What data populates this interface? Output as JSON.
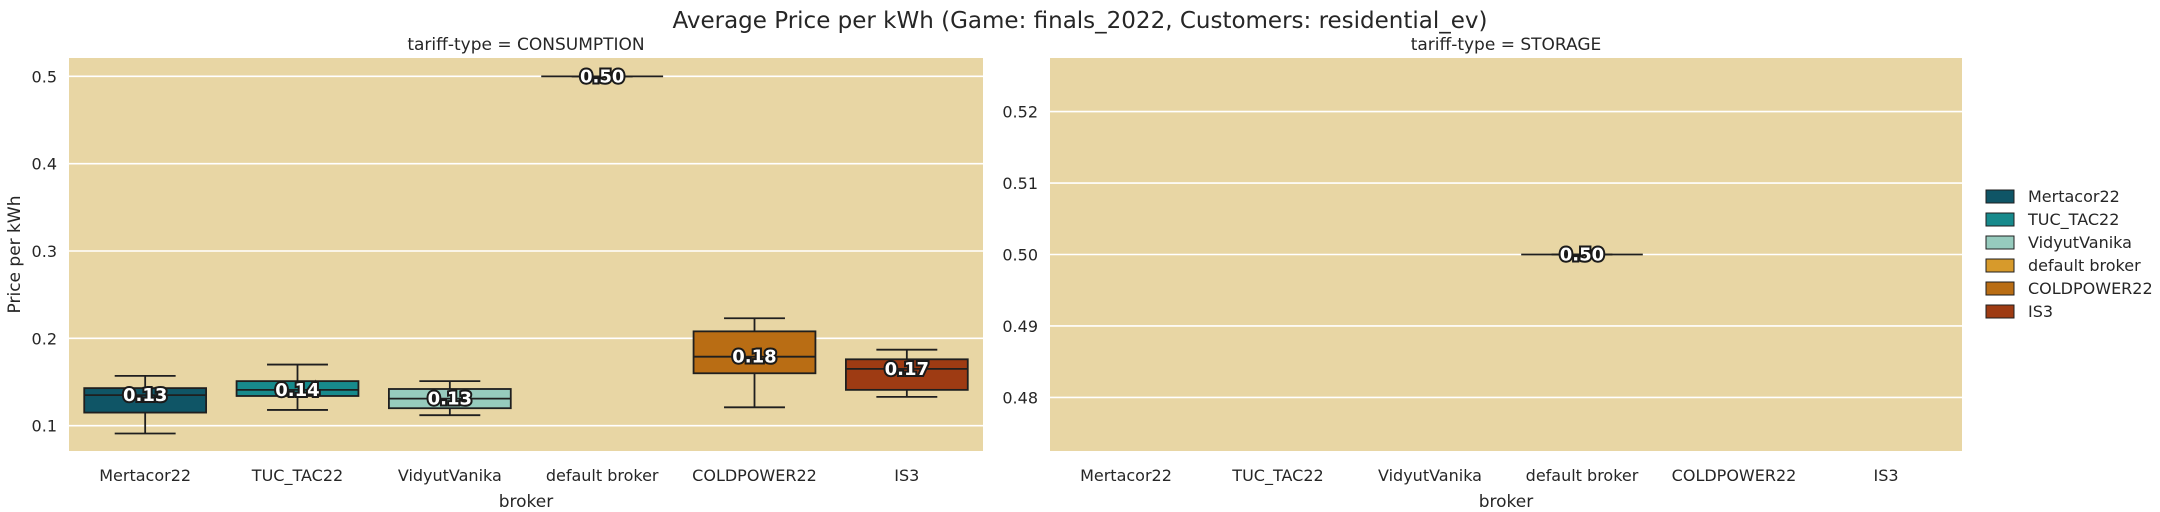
{
  "chart_data": {
    "type": "box",
    "title": "Average Price per kWh (Game: finals_2022, Customers: residential_ev)",
    "panel_background": "#e8d6a4",
    "legend": {
      "placement": "right",
      "entries": [
        {
          "name": "Mertacor22",
          "color": "#0f5566"
        },
        {
          "name": "TUC_TAC22",
          "color": "#178a8c"
        },
        {
          "name": "VidyutVanika",
          "color": "#96cbbd"
        },
        {
          "name": "default broker",
          "color": "#d79a2b"
        },
        {
          "name": "COLDPOWER22",
          "color": "#b96d14"
        },
        {
          "name": "IS3",
          "color": "#9e3b13"
        }
      ]
    },
    "panels": [
      {
        "title": "tariff-type = CONSUMPTION",
        "xlabel": "broker",
        "ylabel": "Price per kWh",
        "categories": [
          "Mertacor22",
          "TUC_TAC22",
          "VidyutVanika",
          "default broker",
          "COLDPOWER22",
          "IS3"
        ],
        "ylim": [
          0.071,
          0.521
        ],
        "yticks": [
          0.1,
          0.2,
          0.3,
          0.4,
          0.5
        ],
        "ytick_labels": [
          "0.1",
          "0.2",
          "0.3",
          "0.4",
          "0.5"
        ],
        "grid": true,
        "boxes": [
          {
            "category": "Mertacor22",
            "whislo": 0.091,
            "q1": 0.115,
            "median": 0.135,
            "q3": 0.143,
            "whishi": 0.157,
            "label": "0.13"
          },
          {
            "category": "TUC_TAC22",
            "whislo": 0.118,
            "q1": 0.134,
            "median": 0.141,
            "q3": 0.151,
            "whishi": 0.17,
            "label": "0.14"
          },
          {
            "category": "VidyutVanika",
            "whislo": 0.112,
            "q1": 0.12,
            "median": 0.131,
            "q3": 0.142,
            "whishi": 0.151,
            "label": "0.13"
          },
          {
            "category": "default broker",
            "whislo": 0.5,
            "q1": 0.5,
            "median": 0.5,
            "q3": 0.5,
            "whishi": 0.5,
            "label": "0.50"
          },
          {
            "category": "COLDPOWER22",
            "whislo": 0.121,
            "q1": 0.16,
            "median": 0.179,
            "q3": 0.208,
            "whishi": 0.223,
            "label": "0.18"
          },
          {
            "category": "IS3",
            "whislo": 0.133,
            "q1": 0.141,
            "median": 0.165,
            "q3": 0.176,
            "whishi": 0.187,
            "label": "0.17"
          }
        ]
      },
      {
        "title": "tariff-type = STORAGE",
        "xlabel": "broker",
        "ylabel": "",
        "categories": [
          "Mertacor22",
          "TUC_TAC22",
          "VidyutVanika",
          "default broker",
          "COLDPOWER22",
          "IS3"
        ],
        "ylim": [
          0.4725,
          0.5275
        ],
        "yticks": [
          0.48,
          0.49,
          0.5,
          0.51,
          0.52
        ],
        "ytick_labels": [
          "0.48",
          "0.49",
          "0.50",
          "0.51",
          "0.52"
        ],
        "grid": true,
        "boxes": [
          {
            "category": "default broker",
            "whislo": 0.5,
            "q1": 0.5,
            "median": 0.5,
            "q3": 0.5,
            "whishi": 0.5,
            "label": "0.50"
          }
        ]
      }
    ]
  }
}
